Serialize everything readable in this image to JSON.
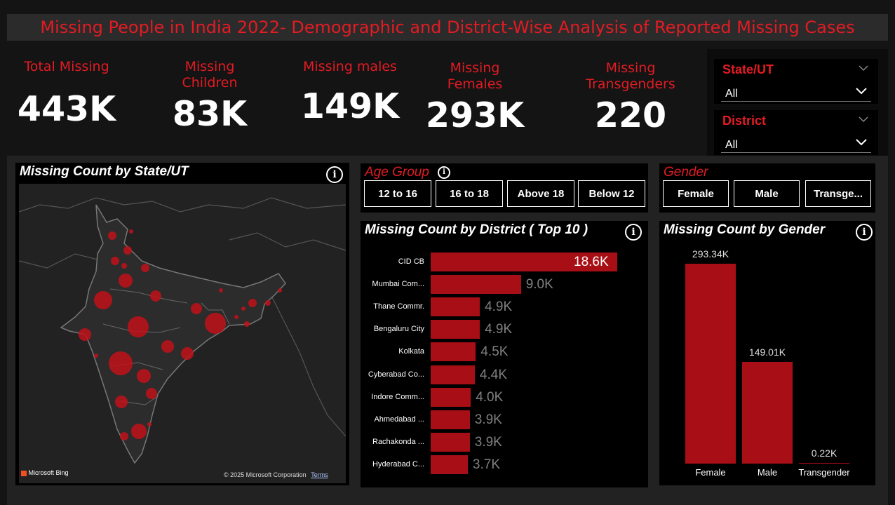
{
  "header": {
    "title": "Missing People in India 2022- Demographic and District-Wise Analysis of Reported Missing Cases"
  },
  "kpis": [
    {
      "label": "Total Missing",
      "value": "443K"
    },
    {
      "label": "Missing Children",
      "value": "83K"
    },
    {
      "label": "Missing males",
      "value": "149K"
    },
    {
      "label": "Missing Females",
      "value": "293K"
    },
    {
      "label": "Missing Transgenders",
      "value": "220"
    }
  ],
  "slicers": {
    "state": {
      "title": "State/UT",
      "value": "All"
    },
    "district": {
      "title": "District",
      "value": "All"
    }
  },
  "map": {
    "title": "Missing Count by State/UT",
    "brand": "Microsoft Bing",
    "copyright": "© 2025 Microsoft Corporation",
    "terms": "Terms"
  },
  "age_group": {
    "title": "Age Group",
    "buttons": [
      "12 to 16",
      "16 to 18",
      "Above 18",
      "Below 12"
    ]
  },
  "gender_slicer": {
    "title": "Gender",
    "buttons": [
      "Female",
      "Male",
      "Transge..."
    ]
  },
  "district_chart": {
    "title": "Missing Count by District ( Top 10 )",
    "categories": [
      "CID CB",
      "Mumbai Com...",
      "Thane Commr.",
      "Bengaluru City",
      "Kolkata",
      "Cyberabad Co...",
      "Indore Comm...",
      "Ahmedabad ...",
      "Rachakonda ...",
      "Hyderabad C..."
    ],
    "values": [
      18.6,
      9.0,
      4.9,
      4.9,
      4.5,
      4.4,
      4.0,
      3.9,
      3.9,
      3.7
    ],
    "labels": [
      "18.6K",
      "9.0K",
      "4.9K",
      "4.9K",
      "4.5K",
      "4.4K",
      "4.0K",
      "3.9K",
      "3.9K",
      "3.7K"
    ]
  },
  "gender_chart": {
    "title": "Missing Count by Gender",
    "categories": [
      "Female",
      "Male",
      "Transgender"
    ],
    "values": [
      293.34,
      149.01,
      0.22
    ],
    "labels": [
      "293.34K",
      "149.01K",
      "0.22K"
    ]
  },
  "chart_data": [
    {
      "type": "bar",
      "orientation": "horizontal",
      "title": "Missing Count by District ( Top 10 )",
      "categories": [
        "CID CB",
        "Mumbai Com...",
        "Thane Commr.",
        "Bengaluru City",
        "Kolkata",
        "Cyberabad Co...",
        "Indore Comm...",
        "Ahmedabad ...",
        "Rachakonda ...",
        "Hyderabad C..."
      ],
      "values": [
        18600,
        9000,
        4900,
        4900,
        4500,
        4400,
        4000,
        3900,
        3900,
        3700
      ]
    },
    {
      "type": "bar",
      "title": "Missing Count by Gender",
      "categories": [
        "Female",
        "Male",
        "Transgender"
      ],
      "values": [
        293340,
        149010,
        220
      ]
    }
  ],
  "colors": {
    "accent": "#e31b23",
    "bar": "#a80e15",
    "background": "#141414",
    "panel": "#000000"
  }
}
